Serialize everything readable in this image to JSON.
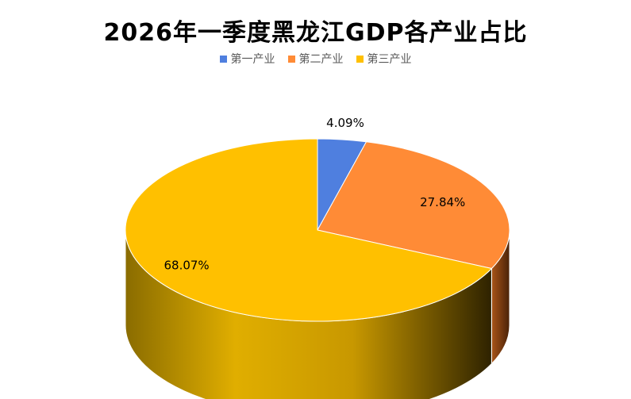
{
  "chart_data": {
    "type": "pie",
    "title": "2026年一季度黑龙江GDP各产业占比",
    "legend_position": "top",
    "series": [
      {
        "name": "第一产业",
        "value": 4.09,
        "label": "4.09%",
        "color": "#4F7FDF"
      },
      {
        "name": "第二产业",
        "value": 27.84,
        "label": "27.84%",
        "color": "#FF8B36"
      },
      {
        "name": "第三产业",
        "value": 68.07,
        "label": "68.07%",
        "color": "#FFC000"
      }
    ]
  }
}
